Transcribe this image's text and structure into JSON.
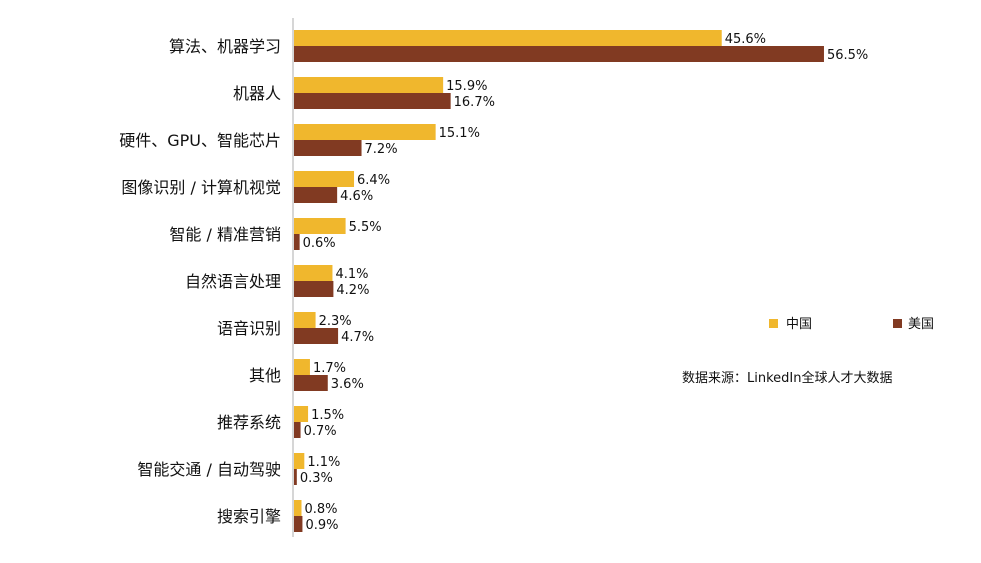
{
  "chart_data": {
    "type": "bar",
    "orientation": "horizontal",
    "categories": [
      "算法、机器学习",
      "机器人",
      "硬件、GPU、智能芯片",
      "图像识别 / 计算机视觉",
      "智能 / 精准营销",
      "自然语言处理",
      "语音识别",
      "其他",
      "推荐系统",
      "智能交通 / 自动驾驶",
      "搜索引擎"
    ],
    "series": [
      {
        "name": "中国",
        "color": "#f0b72d",
        "values": [
          45.6,
          15.9,
          15.1,
          6.4,
          5.5,
          4.1,
          2.3,
          1.7,
          1.5,
          1.1,
          0.8
        ],
        "labels": [
          "45.6%",
          "15.9%",
          "15.1%",
          "6.4%",
          "5.5%",
          "4.1%",
          "2.3%",
          "1.7%",
          "1.5%",
          "1.1%",
          "0.8%"
        ]
      },
      {
        "name": "美国",
        "color": "#813a22",
        "values": [
          56.5,
          16.7,
          7.2,
          4.6,
          0.6,
          4.2,
          4.7,
          3.6,
          0.7,
          0.3,
          0.9
        ],
        "labels": [
          "56.5%",
          "16.7%",
          "7.2%",
          "4.6%",
          "0.6%",
          "4.2%",
          "4.7%",
          "3.6%",
          "0.7%",
          "0.3%",
          "0.9%"
        ]
      }
    ],
    "xlim": [
      0,
      60
    ],
    "grid": false,
    "legend_position": "right",
    "source": "数据来源：LinkedIn全球人才大数据"
  }
}
